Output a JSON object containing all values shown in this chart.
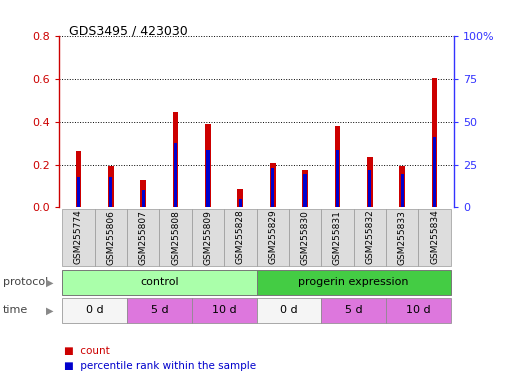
{
  "title": "GDS3495 / 423030",
  "samples": [
    "GSM255774",
    "GSM255806",
    "GSM255807",
    "GSM255808",
    "GSM255809",
    "GSM255828",
    "GSM255829",
    "GSM255830",
    "GSM255831",
    "GSM255832",
    "GSM255833",
    "GSM255834"
  ],
  "red_values": [
    0.265,
    0.195,
    0.13,
    0.445,
    0.39,
    0.085,
    0.21,
    0.175,
    0.38,
    0.235,
    0.195,
    0.605
  ],
  "blue_values": [
    0.14,
    0.14,
    0.08,
    0.3,
    0.27,
    0.04,
    0.185,
    0.155,
    0.27,
    0.175,
    0.155,
    0.33
  ],
  "ylim_left": [
    0,
    0.8
  ],
  "ylim_right": [
    0,
    100
  ],
  "yticks_left": [
    0,
    0.2,
    0.4,
    0.6,
    0.8
  ],
  "yticks_right": [
    0,
    25,
    50,
    75,
    100
  ],
  "ytick_labels_right": [
    "0",
    "25",
    "50",
    "75",
    "100%"
  ],
  "bar_color_red": "#cc0000",
  "bar_color_blue": "#0000cc",
  "bar_width": 0.18,
  "blue_bar_width": 0.18,
  "protocol_label": "protocol",
  "time_label": "time",
  "axis_color_left": "#cc0000",
  "axis_color_right": "#3333ff",
  "grid_color": "#000000",
  "sample_box_color": "#dddddd",
  "protocol_control_color": "#aaffaa",
  "protocol_progerin_color": "#44cc44",
  "time_white_color": "#f5f5f5",
  "time_pink_color": "#dd77dd",
  "legend_square_size": 7,
  "title_fontsize": 9,
  "bar_label_fontsize": 7,
  "tick_fontsize": 8,
  "sample_fontsize": 6.5,
  "row_label_fontsize": 8,
  "row_text_fontsize": 8
}
